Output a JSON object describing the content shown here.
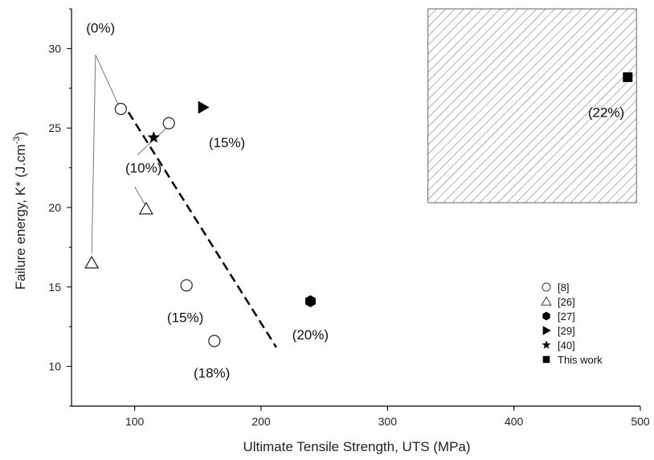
{
  "chart_data": {
    "type": "scatter",
    "xlabel": "Ultimate Tensile Strength, UTS (MPa)",
    "ylabel_main": "Failure energy, K* (J.cm",
    "ylabel_sup": "-3",
    "ylabel_end": ")",
    "xlim": [
      50,
      500
    ],
    "ylim": [
      7.5,
      32.5
    ],
    "x_ticks": [
      100,
      200,
      300,
      400,
      500
    ],
    "y_ticks": [
      10,
      15,
      20,
      25,
      30
    ],
    "grid": false,
    "legend_position": "bottom-right",
    "series": [
      {
        "name": "[8]",
        "marker": "open-circle",
        "points": [
          [
            89,
            26.2
          ],
          [
            127,
            25.3
          ],
          [
            141,
            15.1
          ],
          [
            163,
            11.6
          ]
        ]
      },
      {
        "name": "[26]",
        "marker": "open-triangle",
        "points": [
          [
            66,
            16.5
          ],
          [
            109,
            19.9
          ]
        ]
      },
      {
        "name": "[27]",
        "marker": "filled-hexagon",
        "points": [
          [
            239,
            14.1
          ]
        ]
      },
      {
        "name": "[29]",
        "marker": "filled-triangle-right",
        "points": [
          [
            154,
            26.3
          ]
        ]
      },
      {
        "name": "[40]",
        "marker": "filled-star",
        "points": [
          [
            115,
            24.4
          ]
        ]
      },
      {
        "name": "This work",
        "marker": "filled-square",
        "points": [
          [
            490,
            28.2
          ]
        ]
      }
    ],
    "annotations": [
      {
        "text": "(0%)",
        "x": 73,
        "y": 31.3
      },
      {
        "text": "(10%)",
        "x": 107,
        "y": 22.5
      },
      {
        "text": "(15%)",
        "x": 173,
        "y": 24.1
      },
      {
        "text": "(15%)",
        "x": 140,
        "y": 13.1
      },
      {
        "text": "(18%)",
        "x": 161,
        "y": 9.6
      },
      {
        "text": "(20%)",
        "x": 239,
        "y": 12.0
      },
      {
        "text": "(22%)",
        "x": 473,
        "y": 26.0
      }
    ],
    "leader_lines": [
      [
        [
          69,
          29.6
        ],
        [
          66,
          17.1
        ]
      ],
      [
        [
          69,
          29.6
        ],
        [
          88,
          26.3
        ]
      ],
      [
        [
          102,
          23.3
        ],
        [
          125,
          25.0
        ]
      ],
      [
        [
          100,
          21.3
        ],
        [
          108,
          20.2
        ]
      ]
    ],
    "trend_line": {
      "style": "dashed",
      "from": [
        95,
        26.0
      ],
      "to": [
        212,
        11.2
      ]
    },
    "hatched_region": {
      "x": [
        332,
        497
      ],
      "y": [
        20.3,
        32.5
      ]
    }
  }
}
